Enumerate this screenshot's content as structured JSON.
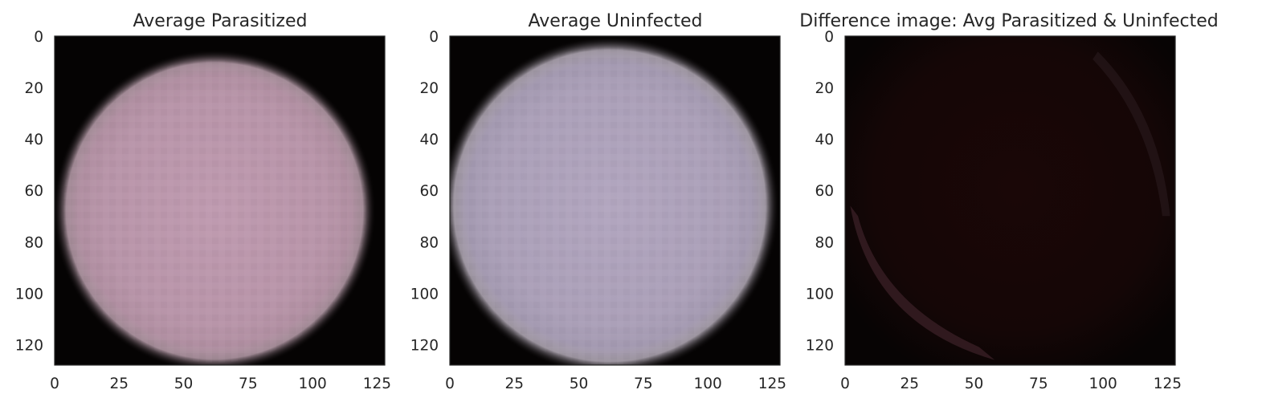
{
  "chart_data": [
    {
      "type": "heatmap",
      "title": "Average Parasitized",
      "xlabel": "",
      "ylabel": "",
      "xlim": [
        0,
        128
      ],
      "ylim": [
        128,
        0
      ],
      "xticks": [
        "0",
        "25",
        "50",
        "75",
        "100",
        "125"
      ],
      "yticks": [
        "0",
        "20",
        "40",
        "60",
        "80",
        "100",
        "120"
      ],
      "image": {
        "kind": "average-cell",
        "center": [
          62,
          68
        ],
        "radius": 59,
        "tint": "#b895a9",
        "glow": "#d5b6c6",
        "background": "#050303"
      }
    },
    {
      "type": "heatmap",
      "title": "Average Uninfected",
      "xlabel": "",
      "ylabel": "",
      "xlim": [
        0,
        128
      ],
      "ylim": [
        128,
        0
      ],
      "xticks": [
        "0",
        "25",
        "50",
        "75",
        "100",
        "125"
      ],
      "yticks": [
        "0",
        "20",
        "40",
        "60",
        "80",
        "100",
        "120"
      ],
      "image": {
        "kind": "average-cell",
        "center": [
          62,
          66
        ],
        "radius": 62,
        "tint": "#aba0b8",
        "glow": "#cfc5d4",
        "background": "#050303"
      }
    },
    {
      "type": "heatmap",
      "title": "Difference image: Avg Parasitized & Uninfected",
      "xlabel": "",
      "ylabel": "",
      "xlim": [
        0,
        128
      ],
      "ylim": [
        128,
        0
      ],
      "xticks": [
        "0",
        "25",
        "50",
        "75",
        "100",
        "125"
      ],
      "yticks": [
        "0",
        "20",
        "40",
        "60",
        "80",
        "100",
        "120"
      ],
      "image": {
        "kind": "difference",
        "tint": "#1a0707",
        "edge": "#4a2a33",
        "background": "#070404"
      }
    }
  ],
  "colors": {
    "axes_edge": "#262626",
    "text": "#262626",
    "figure_background": "#ffffff"
  }
}
